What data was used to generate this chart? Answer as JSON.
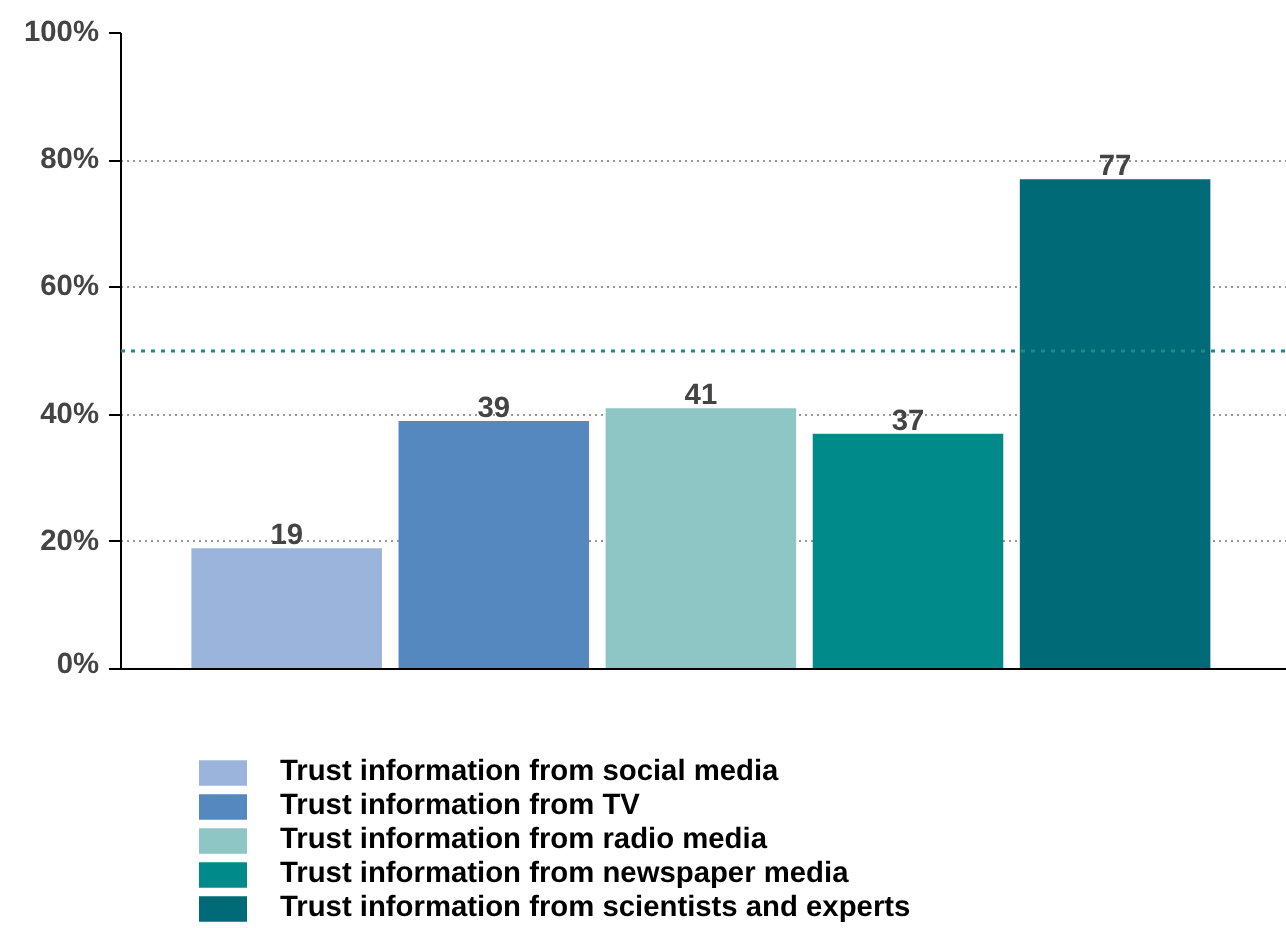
{
  "chart_data": {
    "type": "bar",
    "categories": [
      null,
      null,
      null,
      null,
      null
    ],
    "series": [
      {
        "name": "Trust information from social media",
        "color": "#9bb4dc",
        "values": [
          19,
          null,
          null,
          null,
          null
        ]
      },
      {
        "name": "Trust information from TV",
        "color": "#5588bf",
        "values": [
          null,
          39,
          null,
          null,
          null
        ]
      },
      {
        "name": "Trust information from radio media",
        "color": "#8ec6c5",
        "values": [
          null,
          null,
          41,
          null,
          null
        ]
      },
      {
        "name": "Trust information from newspaper media",
        "color": "#008b8a",
        "values": [
          null,
          null,
          null,
          37,
          null
        ]
      },
      {
        "name": "Trust information from scientists and experts",
        "color": "#006b76",
        "values": [
          null,
          null,
          null,
          null,
          77
        ]
      }
    ],
    "ylim": [
      0,
      100
    ],
    "yticks": [
      {
        "value": 0,
        "label": "0%"
      },
      {
        "value": 20,
        "label": "20%"
      },
      {
        "value": 40,
        "label": "40%"
      },
      {
        "value": 60,
        "label": "60%"
      },
      {
        "value": 80,
        "label": "80%"
      },
      {
        "value": 100,
        "label": "100%"
      }
    ],
    "grid": "y",
    "legend": "bottom",
    "data_labels": true,
    "ref_lines": [
      {
        "axis": "y",
        "value": 50,
        "label": null,
        "color": "#1a8a8a",
        "line_style": "dotted"
      }
    ]
  }
}
